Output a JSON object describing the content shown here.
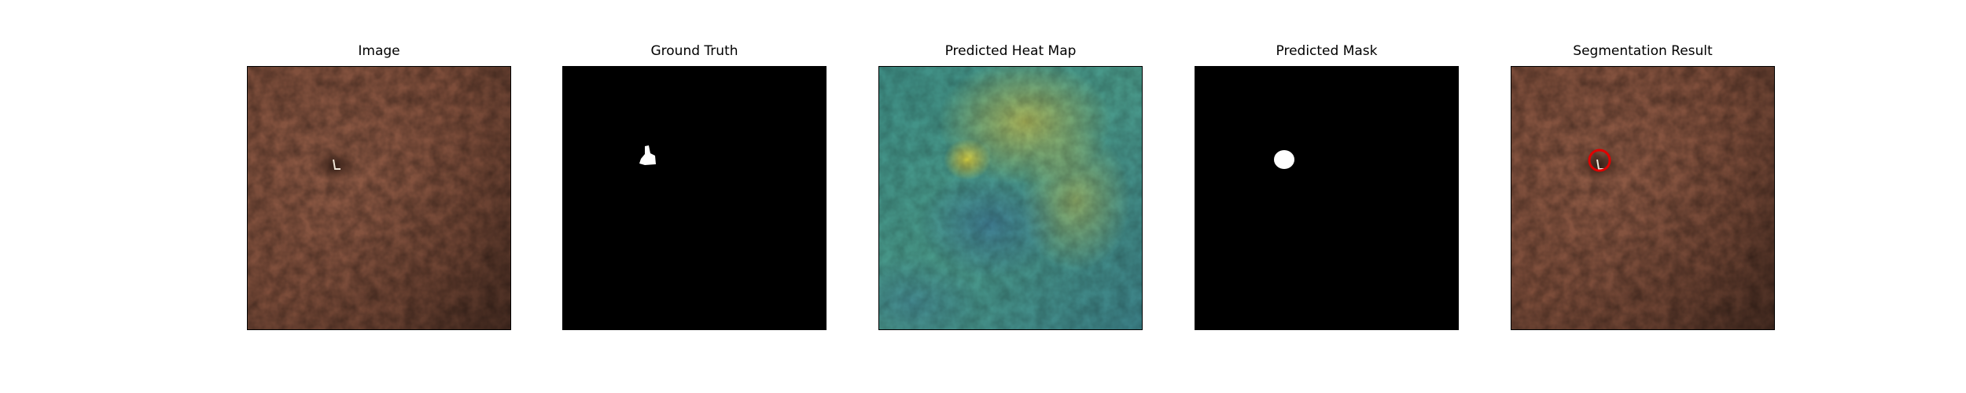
{
  "figure": {
    "panels": [
      {
        "title": "Image"
      },
      {
        "title": "Ground Truth"
      },
      {
        "title": "Predicted Heat Map"
      },
      {
        "title": "Predicted Mask"
      },
      {
        "title": "Segmentation Result"
      }
    ]
  }
}
